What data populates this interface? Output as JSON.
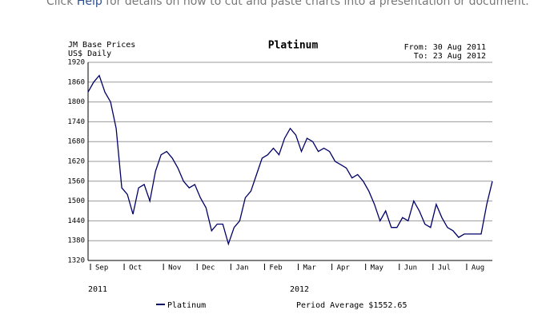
{
  "header": {
    "prefix": "Click ",
    "link": "Help",
    "suffix": " for details on how to cut and paste charts into a presentation or document."
  },
  "chart_data": {
    "type": "line",
    "title": "Platinum",
    "source_lines": [
      "JM Base Prices",
      "US$ Daily"
    ],
    "range_lines": [
      "From: 30 Aug 2011",
      "To: 23 Aug 2012"
    ],
    "year_labels": [
      "2011",
      "2012"
    ],
    "period_average": "Period Average $1552.65",
    "categories": [
      "Sep",
      null,
      null,
      null,
      null,
      null,
      "Oct",
      null,
      null,
      null,
      null,
      null,
      null,
      "Nov",
      null,
      null,
      null,
      null,
      null,
      "Dec",
      null,
      null,
      null,
      null,
      null,
      "Jan",
      null,
      null,
      null,
      null,
      null,
      "Feb",
      null,
      null,
      null,
      null,
      null,
      "Mar",
      null,
      null,
      null,
      null,
      null,
      "Apr",
      null,
      null,
      null,
      null,
      null,
      "May",
      null,
      null,
      null,
      null,
      null,
      "Jun",
      null,
      null,
      null,
      null,
      null,
      "Jul",
      null,
      null,
      null,
      null,
      null,
      "Aug",
      null,
      null,
      null,
      null,
      null
    ],
    "series": [
      {
        "name": "Platinum",
        "color": "#000066",
        "values": [
          1830,
          1860,
          1880,
          1830,
          1800,
          1720,
          1540,
          1520,
          1460,
          1540,
          1550,
          1500,
          1590,
          1640,
          1650,
          1630,
          1600,
          1560,
          1540,
          1550,
          1510,
          1480,
          1410,
          1430,
          1430,
          1370,
          1420,
          1440,
          1510,
          1530,
          1580,
          1630,
          1640,
          1660,
          1640,
          1690,
          1720,
          1700,
          1650,
          1690,
          1680,
          1650,
          1660,
          1650,
          1620,
          1610,
          1600,
          1570,
          1580,
          1560,
          1530,
          1490,
          1440,
          1470,
          1420,
          1420,
          1450,
          1440,
          1500,
          1470,
          1430,
          1420,
          1490,
          1450,
          1420,
          1410,
          1390,
          1400,
          1400,
          1400,
          1400,
          1490,
          1560
        ]
      }
    ],
    "ylim": [
      1320,
      1920
    ],
    "yticks": [
      1320,
      1380,
      1440,
      1500,
      1560,
      1620,
      1680,
      1740,
      1800,
      1860,
      1920
    ],
    "grid": true
  }
}
